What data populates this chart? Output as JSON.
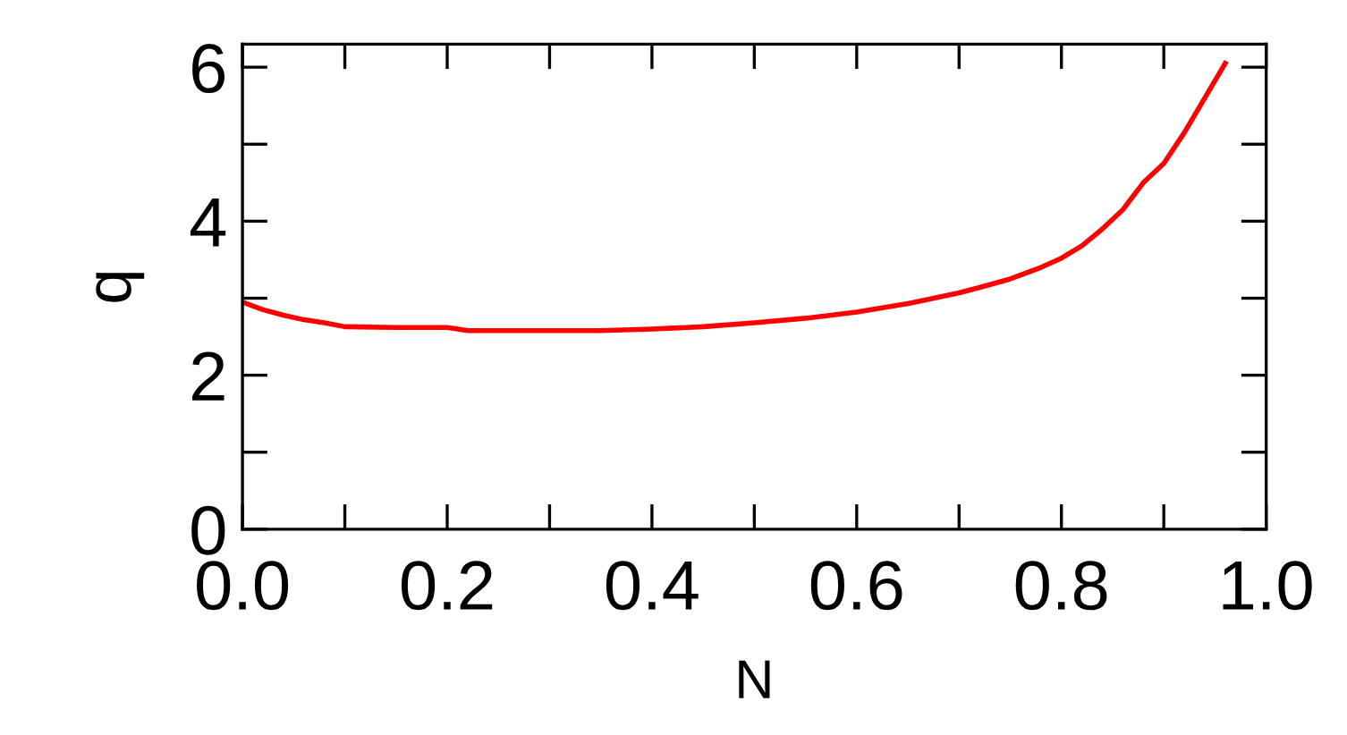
{
  "chart_data": {
    "type": "line",
    "xlabel": "N",
    "ylabel": "q",
    "x": [
      0.0,
      0.02,
      0.04,
      0.06,
      0.08,
      0.1,
      0.15,
      0.2,
      0.22,
      0.25,
      0.3,
      0.35,
      0.4,
      0.45,
      0.5,
      0.55,
      0.6,
      0.65,
      0.7,
      0.72,
      0.75,
      0.78,
      0.8,
      0.82,
      0.84,
      0.86,
      0.88,
      0.9,
      0.92,
      0.94,
      0.96
    ],
    "series": [
      {
        "color": "#ff0000",
        "values": [
          2.95,
          2.85,
          2.78,
          2.72,
          2.68,
          2.63,
          2.62,
          2.62,
          2.58,
          2.58,
          2.58,
          2.58,
          2.6,
          2.63,
          2.68,
          2.74,
          2.82,
          2.93,
          3.07,
          3.14,
          3.25,
          3.4,
          3.52,
          3.68,
          3.9,
          4.15,
          4.5,
          4.75,
          5.15,
          5.6,
          6.05
        ]
      }
    ],
    "xlim": [
      0,
      1
    ],
    "ylim": [
      0,
      6.3
    ],
    "xticks": [
      {
        "value": 0,
        "label": "0.0"
      },
      {
        "value": 0.1,
        "label": null
      },
      {
        "value": 0.2,
        "label": "0.2"
      },
      {
        "value": 0.3,
        "label": null
      },
      {
        "value": 0.4,
        "label": "0.4"
      },
      {
        "value": 0.5,
        "label": null
      },
      {
        "value": 0.6,
        "label": "0.6"
      },
      {
        "value": 0.7,
        "label": null
      },
      {
        "value": 0.8,
        "label": "0.8"
      },
      {
        "value": 0.9,
        "label": null
      },
      {
        "value": 1.0,
        "label": "1.0"
      }
    ],
    "yticks": [
      0,
      {
        "value": 1,
        "label": null
      },
      2,
      {
        "value": 3,
        "label": null
      },
      4,
      {
        "value": 5,
        "label": null
      },
      6
    ],
    "grid": false,
    "legend": false,
    "marker": "none",
    "line_style": "solid"
  }
}
